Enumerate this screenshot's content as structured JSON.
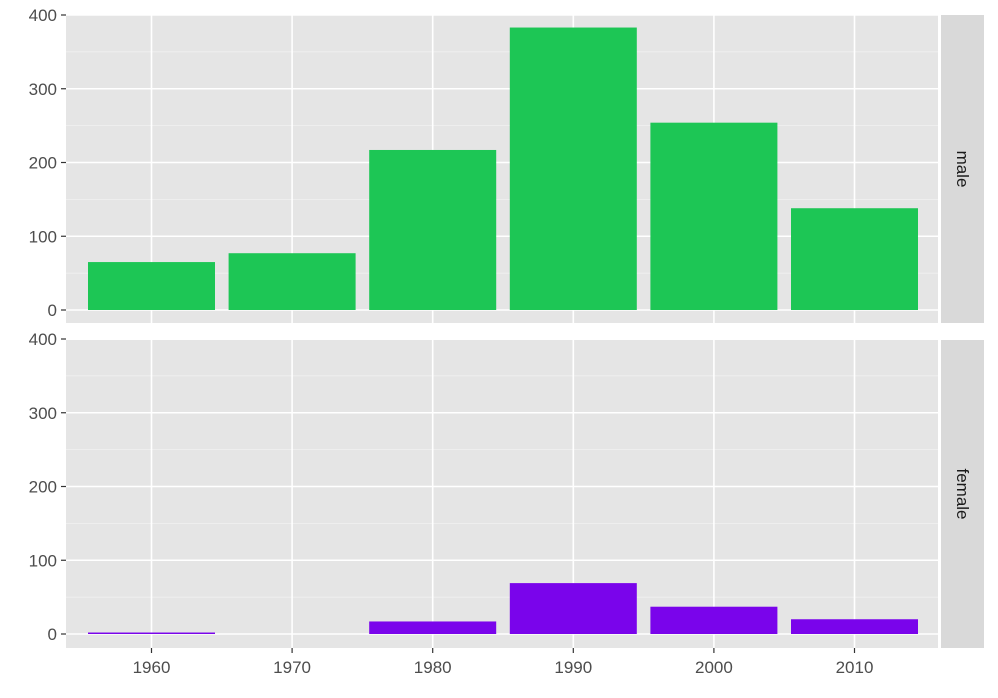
{
  "chart_data": {
    "type": "bar",
    "facet": "rows",
    "categories": [
      "1960",
      "1970",
      "1980",
      "1990",
      "2000",
      "2010"
    ],
    "series": [
      {
        "name": "male",
        "color": "#1dc655",
        "values": [
          65,
          77,
          217,
          383,
          254,
          138
        ]
      },
      {
        "name": "female",
        "color": "#7a04eb",
        "values": [
          2,
          0,
          17,
          69,
          37,
          20
        ]
      }
    ],
    "ylim": [
      0,
      400
    ],
    "yticks": [
      0,
      100,
      200,
      300,
      400
    ],
    "xticks": [
      "1960",
      "1970",
      "1980",
      "1990",
      "2000",
      "2010"
    ],
    "title": "",
    "xlabel": "",
    "ylabel": "",
    "grid": true,
    "legend": "none"
  }
}
